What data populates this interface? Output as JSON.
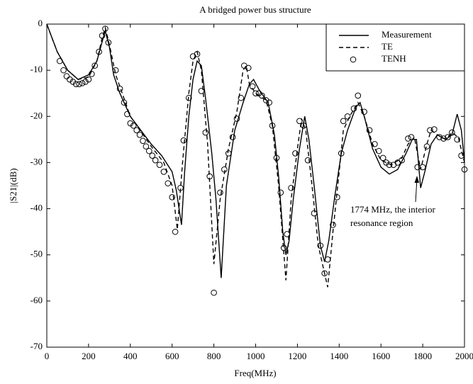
{
  "chart_data": {
    "type": "line",
    "title": "A bridged power bus structure",
    "x_label": "Freq(MHz)",
    "y_label": "|S21|(dB)",
    "annotation": [
      "1774 MHz, the interior",
      "resonance region"
    ],
    "xlim": [
      0,
      2000
    ],
    "xticks": [
      0,
      200,
      400,
      600,
      800,
      1000,
      1200,
      1400,
      1600,
      1800,
      2000
    ],
    "ylim": [
      -70,
      0
    ],
    "yticks": [
      -70,
      -60,
      -50,
      -40,
      -30,
      -20,
      -10,
      0
    ],
    "legend": "upper right",
    "series": [
      {
        "name": "Measurement",
        "color": "#000000",
        "style": "solid",
        "x": [
          0,
          50,
          100,
          150,
          200,
          240,
          270,
          280,
          300,
          320,
          350,
          400,
          450,
          500,
          550,
          600,
          620,
          645,
          660,
          680,
          700,
          720,
          740,
          760,
          790,
          810,
          835,
          860,
          900,
          940,
          970,
          990,
          1020,
          1060,
          1090,
          1110,
          1130,
          1145,
          1160,
          1180,
          1210,
          1235,
          1255,
          1280,
          1310,
          1330,
          1350,
          1380,
          1410,
          1440,
          1480,
          1500,
          1520,
          1560,
          1600,
          1640,
          1680,
          1720,
          1750,
          1770,
          1790,
          1810,
          1840,
          1870,
          1910,
          1940,
          1965,
          1985,
          2000
        ],
        "values": [
          0,
          -6,
          -10,
          -12,
          -11,
          -8,
          -3,
          -1.5,
          -5,
          -11,
          -15,
          -20,
          -23,
          -26,
          -28.5,
          -32,
          -36,
          -43.5,
          -32,
          -20,
          -12,
          -8,
          -9,
          -16,
          -28,
          -38,
          -55,
          -35,
          -23,
          -17,
          -13,
          -12,
          -14.5,
          -17,
          -24,
          -33,
          -45,
          -50,
          -47,
          -38,
          -27,
          -20,
          -25,
          -35,
          -48,
          -51.5,
          -47,
          -37,
          -28,
          -23,
          -18,
          -17,
          -20,
          -27,
          -31,
          -32.5,
          -31.5,
          -28,
          -25,
          -25,
          -35.5,
          -32,
          -26,
          -24,
          -25,
          -24,
          -19.5,
          -23,
          -30
        ]
      },
      {
        "name": "TE",
        "color": "#000000",
        "style": "dashed",
        "x": [
          0,
          50,
          100,
          150,
          200,
          240,
          265,
          280,
          300,
          330,
          400,
          500,
          560,
          600,
          625,
          650,
          680,
          700,
          720,
          740,
          770,
          800,
          830,
          870,
          910,
          940,
          955,
          970,
          1000,
          1050,
          1080,
          1110,
          1145,
          1170,
          1200,
          1220,
          1240,
          1270,
          1300,
          1345,
          1370,
          1400,
          1420,
          1450,
          1490,
          1520,
          1560,
          1600,
          1650,
          1700,
          1730,
          1760,
          1790,
          1820,
          1840,
          1870,
          1910,
          1940,
          1970,
          2000
        ],
        "values": [
          0,
          -6,
          -10,
          -12,
          -11.5,
          -8,
          -3,
          -0.8,
          -4.5,
          -11,
          -20,
          -26.5,
          -30,
          -35,
          -44.5,
          -30,
          -15,
          -8,
          -6,
          -10,
          -26,
          -52,
          -38,
          -27,
          -19,
          -10,
          -9,
          -13,
          -15,
          -16.5,
          -22,
          -35,
          -55.5,
          -38,
          -27,
          -20.5,
          -23,
          -35,
          -48,
          -57,
          -45,
          -32,
          -23,
          -20,
          -17,
          -20,
          -26,
          -29.5,
          -30.5,
          -29,
          -26,
          -24.5,
          -31.5,
          -26,
          -23,
          -24,
          -25,
          -23.5,
          -24.5,
          -30
        ]
      },
      {
        "name": "TENH",
        "color": "#000000",
        "style": "markers",
        "x": [
          62,
          80,
          95,
          110,
          125,
          140,
          155,
          170,
          185,
          200,
          215,
          230,
          250,
          265,
          280,
          295,
          330,
          350,
          370,
          385,
          400,
          415,
          430,
          445,
          460,
          475,
          490,
          505,
          520,
          540,
          560,
          580,
          600,
          615,
          640,
          655,
          680,
          700,
          720,
          740,
          760,
          780,
          800,
          830,
          850,
          870,
          890,
          910,
          930,
          945,
          965,
          985,
          1000,
          1015,
          1030,
          1050,
          1065,
          1080,
          1100,
          1120,
          1135,
          1150,
          1170,
          1190,
          1210,
          1230,
          1250,
          1280,
          1310,
          1330,
          1345,
          1370,
          1390,
          1410,
          1420,
          1440,
          1470,
          1490,
          1520,
          1545,
          1570,
          1590,
          1610,
          1625,
          1640,
          1660,
          1680,
          1700,
          1730,
          1745,
          1775,
          1800,
          1820,
          1835,
          1855,
          1880,
          1900,
          1920,
          1940,
          1965,
          1985,
          2000
        ],
        "values": [
          -8,
          -10,
          -11.3,
          -12,
          -12.5,
          -13,
          -13,
          -12.8,
          -12.5,
          -12,
          -10.8,
          -9,
          -6,
          -2.5,
          -1,
          -4,
          -10,
          -14,
          -17,
          -19.5,
          -21.5,
          -22,
          -23,
          -24,
          -25.3,
          -26.5,
          -27.5,
          -28.5,
          -29.5,
          -30.5,
          -32,
          -34.5,
          -37.5,
          -45,
          -35.5,
          -25.2,
          -16,
          -7,
          -6.5,
          -14.5,
          -23.5,
          -33,
          -58.2,
          -36.5,
          -31.5,
          -28,
          -24.5,
          -20.5,
          -16,
          -9,
          -9.5,
          -13.5,
          -15,
          -15,
          -15.5,
          -16.5,
          -17,
          -22,
          -29,
          -36.5,
          -48.5,
          -45.5,
          -35.5,
          -28,
          -21,
          -22,
          -29.5,
          -41,
          -48,
          -54,
          -51,
          -43.5,
          -37.5,
          -28,
          -21,
          -20,
          -18.3,
          -15.5,
          -19,
          -23,
          -26,
          -27.5,
          -29,
          -30,
          -30.5,
          -30.5,
          -30,
          -29.5,
          -24.8,
          -24.5,
          -31,
          -31,
          -26.5,
          -23,
          -22.8,
          -24.5,
          -24.8,
          -24.5,
          -23.5,
          -25,
          -28.5,
          -31.5
        ]
      }
    ]
  }
}
